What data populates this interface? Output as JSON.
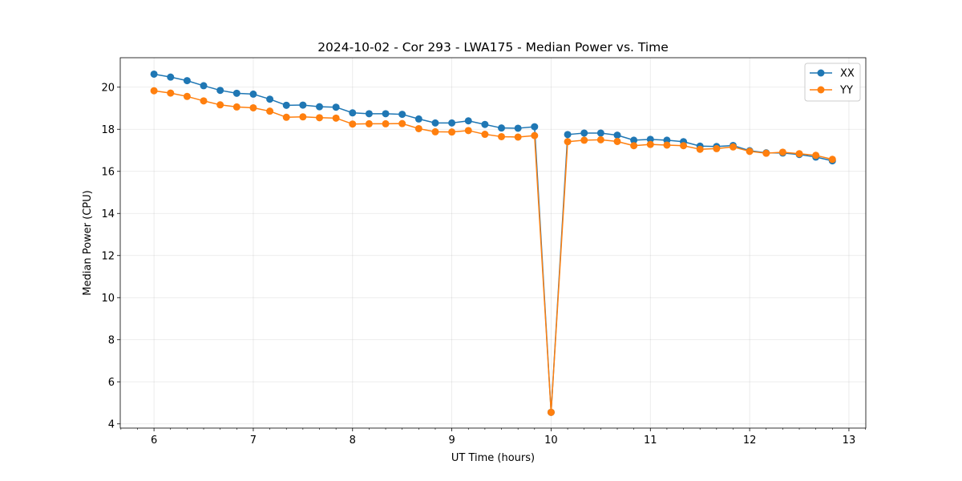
{
  "chart_data": {
    "type": "line",
    "title": "2024-10-02 - Cor 293 - LWA175 - Median Power vs. Time",
    "xlabel": "UT Time (hours)",
    "ylabel": "Median Power (CPU)",
    "xlim": [
      5.66,
      13.17
    ],
    "ylim": [
      3.8,
      21.4
    ],
    "xticks": [
      6,
      7,
      8,
      9,
      10,
      11,
      12,
      13
    ],
    "yticks": [
      4,
      6,
      8,
      10,
      12,
      14,
      16,
      18,
      20
    ],
    "xtick_labels": [
      "6",
      "7",
      "8",
      "9",
      "10",
      "11",
      "12",
      "13"
    ],
    "ytick_labels": [
      "4",
      "6",
      "8",
      "10",
      "12",
      "14",
      "16",
      "18",
      "20"
    ],
    "grid": true,
    "legend_position": "top-right",
    "x": [
      6.0,
      6.1667,
      6.3333,
      6.5,
      6.6667,
      6.8333,
      7.0,
      7.1667,
      7.3333,
      7.5,
      7.6667,
      7.8333,
      8.0,
      8.1667,
      8.3333,
      8.5,
      8.6667,
      8.8333,
      9.0,
      9.1667,
      9.3333,
      9.5,
      9.6667,
      9.8333,
      10.0,
      10.1667,
      10.3333,
      10.5,
      10.6667,
      10.8333,
      11.0,
      11.1667,
      11.3333,
      11.5,
      11.6667,
      11.8333,
      12.0,
      12.1667,
      12.3333,
      12.5,
      12.6667,
      12.8333
    ],
    "series": [
      {
        "name": "XX",
        "color": "#1f77b4",
        "values": [
          20.62,
          20.48,
          20.31,
          20.07,
          19.85,
          19.71,
          19.67,
          19.43,
          19.14,
          19.15,
          19.07,
          19.05,
          18.78,
          18.74,
          18.74,
          18.71,
          18.49,
          18.3,
          18.3,
          18.4,
          18.23,
          18.06,
          18.05,
          18.12,
          4.55,
          17.75,
          17.82,
          17.82,
          17.72,
          17.48,
          17.52,
          17.48,
          17.41,
          17.2,
          17.18,
          17.23,
          16.98,
          16.88,
          16.87,
          16.8,
          16.68,
          16.5
        ]
      },
      {
        "name": "YY",
        "color": "#ff7f0e",
        "values": [
          19.83,
          19.72,
          19.56,
          19.35,
          19.16,
          19.06,
          19.02,
          18.86,
          18.57,
          18.59,
          18.55,
          18.53,
          18.25,
          18.26,
          18.26,
          18.27,
          18.03,
          17.88,
          17.87,
          17.94,
          17.76,
          17.65,
          17.63,
          17.7,
          4.55,
          17.41,
          17.48,
          17.5,
          17.42,
          17.22,
          17.28,
          17.25,
          17.22,
          17.05,
          17.08,
          17.16,
          16.95,
          16.86,
          16.91,
          16.84,
          16.76,
          16.57
        ]
      }
    ]
  }
}
